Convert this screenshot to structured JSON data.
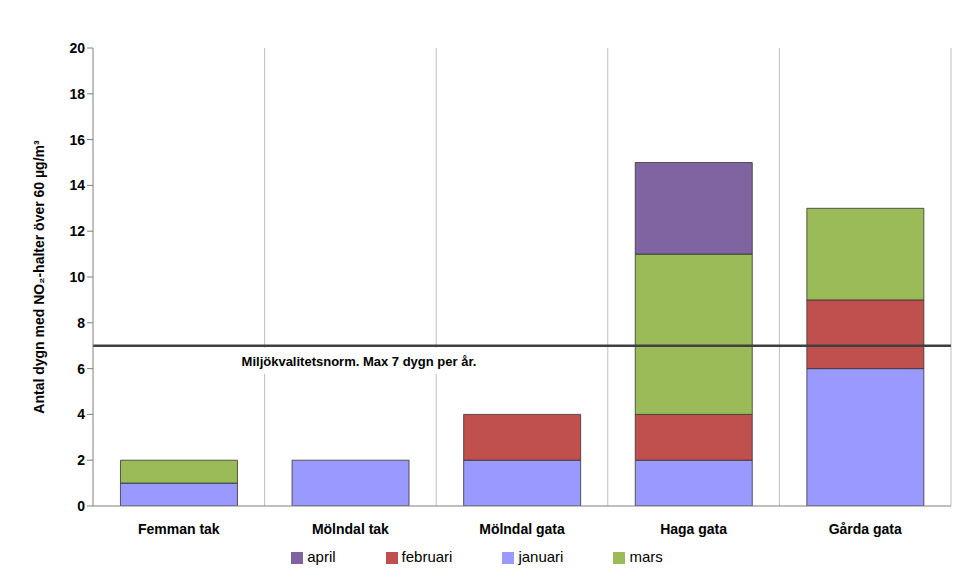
{
  "chart_data": {
    "type": "bar",
    "stacked": true,
    "categories": [
      "Femman tak",
      "Mölndal tak",
      "Mölndal gata",
      "Haga gata",
      "Gårda gata"
    ],
    "series": [
      {
        "name": "januari",
        "color": "#9999ff",
        "values": [
          1,
          2,
          2,
          2,
          6
        ]
      },
      {
        "name": "februari",
        "color": "#c0504d",
        "values": [
          0,
          0,
          2,
          2,
          3
        ]
      },
      {
        "name": "mars",
        "color": "#9bbb59",
        "values": [
          1,
          0,
          0,
          7,
          4
        ]
      },
      {
        "name": "april",
        "color": "#8064a2",
        "values": [
          0,
          0,
          0,
          4,
          0
        ]
      }
    ],
    "y_label": "Antal dygn med NO₂-halter över 60 µg/m³",
    "ylim": [
      0,
      20
    ],
    "yticks": [
      0,
      2,
      4,
      6,
      8,
      10,
      12,
      14,
      16,
      18,
      20
    ],
    "grid": true,
    "legend": "bottom",
    "annotations": [
      {
        "y": 7,
        "label": "Miljökvalitetsnorm. Max 7 dygn per år."
      }
    ]
  }
}
